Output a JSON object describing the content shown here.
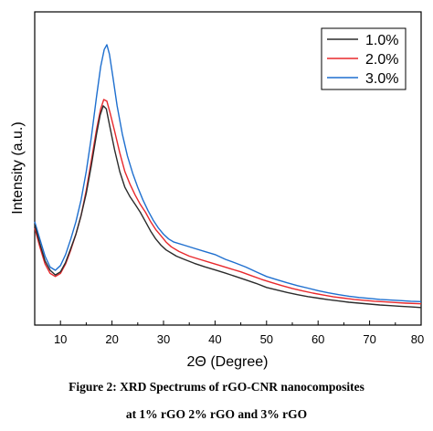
{
  "caption": {
    "line1": "Figure 2: XRD Spectrums of rGO-CNR nanocomposites",
    "line2": "at 1% rGO 2% rGO and 3% rGO"
  },
  "chart_data": {
    "type": "line",
    "xlabel": "2Θ (Degree)",
    "ylabel": "Intensity (a.u.)",
    "xlim": [
      5,
      80
    ],
    "ylim": [
      0,
      100
    ],
    "y_ticks_labeled": false,
    "x_ticks": [
      10,
      20,
      30,
      40,
      50,
      60,
      70,
      80
    ],
    "grid": false,
    "legend_position": "top-right",
    "series": [
      {
        "name": "1.0%",
        "color": "#2b2b2b",
        "points": [
          [
            5,
            32
          ],
          [
            6,
            26
          ],
          [
            7,
            20.5
          ],
          [
            8,
            17.5
          ],
          [
            9,
            16
          ],
          [
            10,
            17
          ],
          [
            11,
            20
          ],
          [
            12,
            24.5
          ],
          [
            13,
            29
          ],
          [
            14,
            35
          ],
          [
            15,
            42
          ],
          [
            16,
            51
          ],
          [
            17,
            61
          ],
          [
            17.7,
            67
          ],
          [
            18.3,
            70
          ],
          [
            18.9,
            69
          ],
          [
            19.5,
            64
          ],
          [
            20.5,
            56
          ],
          [
            21.5,
            49
          ],
          [
            22.5,
            44
          ],
          [
            23.5,
            41
          ],
          [
            24.5,
            38.5
          ],
          [
            25.5,
            36
          ],
          [
            26.5,
            33
          ],
          [
            27.5,
            30
          ],
          [
            28.5,
            27.5
          ],
          [
            29.5,
            25.5
          ],
          [
            30.5,
            24
          ],
          [
            31.5,
            23
          ],
          [
            32.5,
            22
          ],
          [
            34,
            21
          ],
          [
            36,
            19.7
          ],
          [
            38,
            18.6
          ],
          [
            40,
            17.6
          ],
          [
            42,
            16.6
          ],
          [
            44,
            15.5
          ],
          [
            46,
            14.4
          ],
          [
            48,
            13.3
          ],
          [
            50,
            12
          ],
          [
            52,
            11.2
          ],
          [
            54,
            10.4
          ],
          [
            56,
            9.7
          ],
          [
            58,
            9.1
          ],
          [
            60,
            8.6
          ],
          [
            62,
            8.1
          ],
          [
            64,
            7.7
          ],
          [
            66,
            7.3
          ],
          [
            68,
            7
          ],
          [
            70,
            6.7
          ],
          [
            72,
            6.4
          ],
          [
            74,
            6.2
          ],
          [
            76,
            6
          ],
          [
            78,
            5.8
          ],
          [
            80,
            5.6
          ]
        ]
      },
      {
        "name": "2.0%",
        "color": "#e8282c",
        "points": [
          [
            5,
            31
          ],
          [
            6,
            25
          ],
          [
            7,
            19.5
          ],
          [
            8,
            16.5
          ],
          [
            9,
            15.5
          ],
          [
            10,
            16.5
          ],
          [
            11,
            19.5
          ],
          [
            12,
            24
          ],
          [
            13,
            29
          ],
          [
            14,
            35
          ],
          [
            15,
            43
          ],
          [
            16,
            52.5
          ],
          [
            17,
            62.5
          ],
          [
            17.8,
            69
          ],
          [
            18.4,
            72
          ],
          [
            19,
            71.5
          ],
          [
            19.6,
            68
          ],
          [
            20.5,
            62
          ],
          [
            21.5,
            55
          ],
          [
            22.5,
            49
          ],
          [
            23.5,
            45
          ],
          [
            24.5,
            41.5
          ],
          [
            25.5,
            38.5
          ],
          [
            26.5,
            36
          ],
          [
            27.5,
            33
          ],
          [
            28.5,
            30.5
          ],
          [
            29.5,
            28.5
          ],
          [
            30.5,
            26.5
          ],
          [
            31.5,
            25
          ],
          [
            33,
            23.5
          ],
          [
            35,
            22
          ],
          [
            37,
            21
          ],
          [
            39,
            20
          ],
          [
            41,
            19
          ],
          [
            43,
            18
          ],
          [
            45,
            17
          ],
          [
            47,
            15.8
          ],
          [
            49,
            14.6
          ],
          [
            51,
            13.6
          ],
          [
            53,
            12.6
          ],
          [
            55,
            11.7
          ],
          [
            57,
            10.9
          ],
          [
            59,
            10.2
          ],
          [
            61,
            9.6
          ],
          [
            63,
            9
          ],
          [
            65,
            8.6
          ],
          [
            67,
            8.2
          ],
          [
            69,
            7.9
          ],
          [
            71,
            7.6
          ],
          [
            73,
            7.4
          ],
          [
            75,
            7.2
          ],
          [
            77,
            7
          ],
          [
            80,
            6.8
          ]
        ]
      },
      {
        "name": "3.0%",
        "color": "#1e6fcf",
        "points": [
          [
            5,
            33
          ],
          [
            6,
            27.5
          ],
          [
            7,
            22
          ],
          [
            8,
            18.5
          ],
          [
            9,
            17.5
          ],
          [
            10,
            19
          ],
          [
            11,
            22.5
          ],
          [
            12,
            27.5
          ],
          [
            13,
            33
          ],
          [
            14,
            40
          ],
          [
            15,
            49
          ],
          [
            16,
            60
          ],
          [
            17,
            73
          ],
          [
            17.8,
            82.5
          ],
          [
            18.5,
            88
          ],
          [
            19,
            89.5
          ],
          [
            19.5,
            86.5
          ],
          [
            20.2,
            79
          ],
          [
            21,
            70
          ],
          [
            22,
            61
          ],
          [
            23,
            54
          ],
          [
            24,
            48.5
          ],
          [
            25,
            44
          ],
          [
            26,
            40
          ],
          [
            27,
            36.5
          ],
          [
            28,
            33.5
          ],
          [
            29,
            31
          ],
          [
            30,
            29
          ],
          [
            31,
            27.5
          ],
          [
            32,
            26.5
          ],
          [
            34,
            25.5
          ],
          [
            36,
            24.5
          ],
          [
            38,
            23.5
          ],
          [
            40,
            22.5
          ],
          [
            42,
            21
          ],
          [
            44,
            19.8
          ],
          [
            46,
            18.5
          ],
          [
            48,
            17
          ],
          [
            50,
            15.5
          ],
          [
            52,
            14.5
          ],
          [
            54,
            13.5
          ],
          [
            56,
            12.6
          ],
          [
            58,
            11.8
          ],
          [
            60,
            11
          ],
          [
            62,
            10.3
          ],
          [
            64,
            9.7
          ],
          [
            66,
            9.2
          ],
          [
            68,
            8.8
          ],
          [
            70,
            8.5
          ],
          [
            72,
            8.2
          ],
          [
            74,
            8
          ],
          [
            76,
            7.8
          ],
          [
            78,
            7.6
          ],
          [
            80,
            7.5
          ]
        ]
      }
    ]
  }
}
